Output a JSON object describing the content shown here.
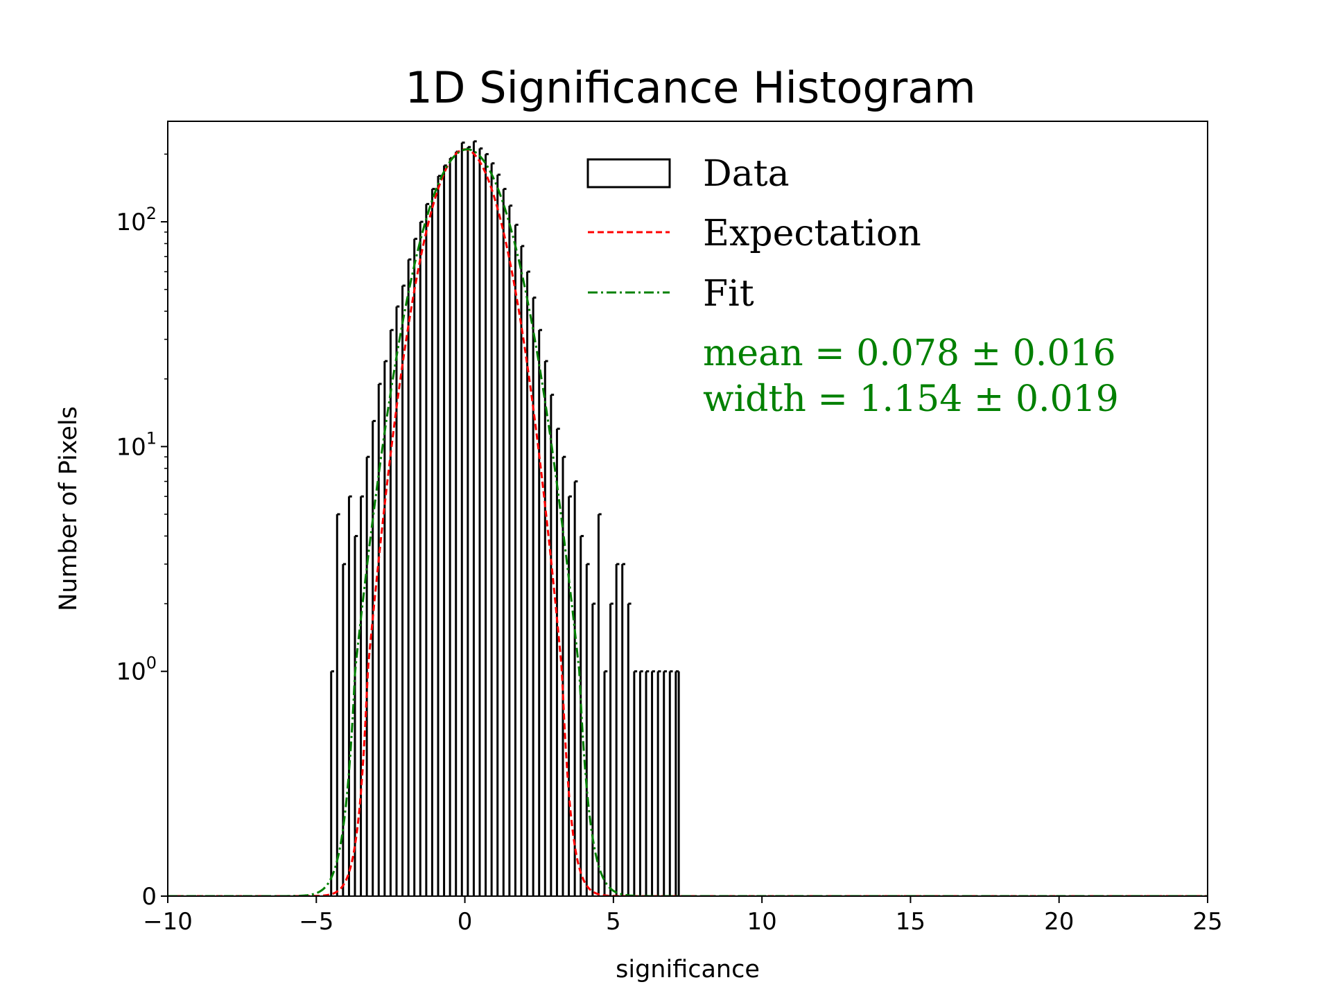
{
  "chart_data": {
    "type": "histogram",
    "title": "1D Significance Histogram",
    "xlabel": "significance",
    "ylabel": "Number of Pixels",
    "xlim": [
      -10,
      25
    ],
    "yscale": "symlog",
    "ylim": [
      0,
      280
    ],
    "x_ticks": [
      -10,
      -5,
      0,
      5,
      10,
      15,
      20,
      25
    ],
    "x_tick_labels": [
      "−10",
      "−5",
      "0",
      "5",
      "10",
      "15",
      "20",
      "25"
    ],
    "y_ticks": [
      {
        "value": 0,
        "base": "0",
        "exp": ""
      },
      {
        "value": 1,
        "base": "10",
        "exp": "0"
      },
      {
        "value": 10,
        "base": "10",
        "exp": "1"
      },
      {
        "value": 100,
        "base": "10",
        "exp": "2"
      }
    ],
    "bin_width": 0.1,
    "data_hist": {
      "name": "Data",
      "color": "#000000",
      "counts": [
        [
          -4.5,
          1
        ],
        [
          -4.3,
          5
        ],
        [
          -4.1,
          3
        ],
        [
          -3.9,
          6
        ],
        [
          -3.7,
          4
        ],
        [
          -3.5,
          6
        ],
        [
          -3.3,
          9
        ],
        [
          -3.1,
          13
        ],
        [
          -2.9,
          19
        ],
        [
          -2.7,
          24
        ],
        [
          -2.5,
          33
        ],
        [
          -2.3,
          42
        ],
        [
          -2.1,
          52
        ],
        [
          -1.9,
          68
        ],
        [
          -1.7,
          84
        ],
        [
          -1.5,
          100
        ],
        [
          -1.3,
          120
        ],
        [
          -1.1,
          140
        ],
        [
          -0.9,
          160
        ],
        [
          -0.7,
          178
        ],
        [
          -0.5,
          192
        ],
        [
          -0.3,
          205
        ],
        [
          -0.1,
          225
        ],
        [
          0.1,
          215
        ],
        [
          0.3,
          228
        ],
        [
          0.5,
          212
        ],
        [
          0.7,
          200
        ],
        [
          0.9,
          182
        ],
        [
          1.1,
          162
        ],
        [
          1.3,
          140
        ],
        [
          1.5,
          118
        ],
        [
          1.7,
          97
        ],
        [
          1.9,
          78
        ],
        [
          2.1,
          60
        ],
        [
          2.3,
          46
        ],
        [
          2.5,
          33
        ],
        [
          2.7,
          24
        ],
        [
          2.9,
          17
        ],
        [
          3.1,
          12
        ],
        [
          3.3,
          9
        ],
        [
          3.5,
          6
        ],
        [
          3.7,
          7
        ],
        [
          3.9,
          4
        ],
        [
          4.1,
          3
        ],
        [
          4.3,
          2
        ],
        [
          4.5,
          5
        ],
        [
          4.7,
          1
        ],
        [
          4.9,
          2
        ],
        [
          5.1,
          3
        ],
        [
          5.3,
          3
        ],
        [
          5.5,
          2
        ],
        [
          5.7,
          1
        ],
        [
          5.9,
          1
        ],
        [
          6.1,
          1
        ],
        [
          6.3,
          1
        ],
        [
          6.5,
          1
        ],
        [
          6.7,
          1
        ],
        [
          6.9,
          1
        ],
        [
          7.1,
          1
        ]
      ]
    },
    "expectation": {
      "name": "Expectation",
      "color": "#ff0000",
      "style": "dashed",
      "model": "gaussian",
      "mean": 0.0,
      "sigma": 1.0,
      "peak": 210
    },
    "fit": {
      "name": "Fit",
      "color": "#008000",
      "style": "dash-dot",
      "model": "gaussian",
      "mean": 0.078,
      "sigma": 1.154,
      "peak": 210
    },
    "legend": {
      "placement": "top-right",
      "entries": [
        "Data",
        "Expectation",
        "Fit"
      ]
    },
    "annotations": {
      "color": "#008000",
      "mean_text": "mean = 0.078 ± 0.016",
      "width_text": "width = 1.154 ± 0.019"
    }
  }
}
